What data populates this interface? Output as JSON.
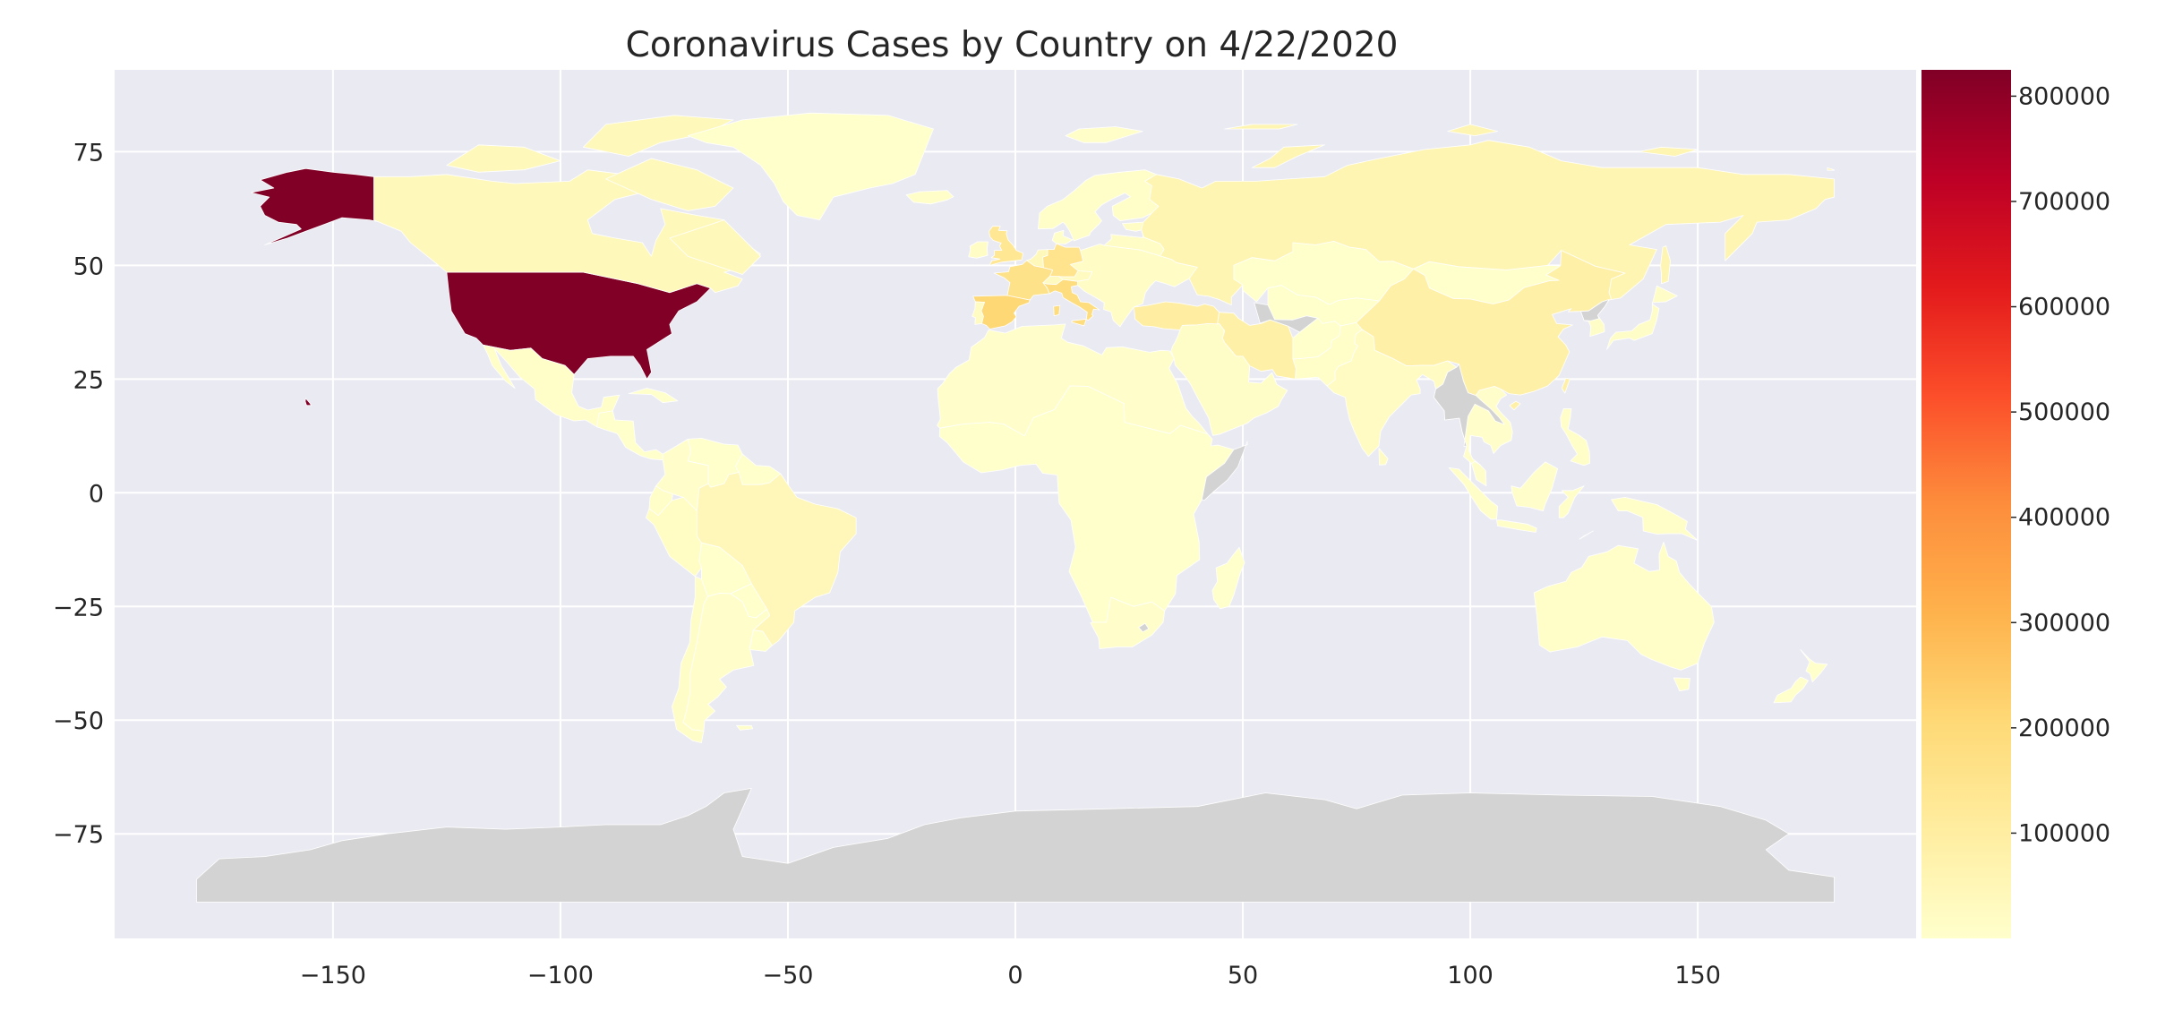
{
  "chart_data": {
    "type": "choropleth",
    "title": "Coronavirus Cases by Country on 4/22/2020",
    "xlabel": "",
    "ylabel": "",
    "xlim": [
      -198,
      198
    ],
    "ylim": [
      -98,
      93
    ],
    "xticks": [
      -150,
      -100,
      -50,
      0,
      50,
      100,
      150
    ],
    "xtick_labels": [
      "−150",
      "−100",
      "−50",
      "0",
      "50",
      "100",
      "150"
    ],
    "yticks": [
      75,
      50,
      25,
      0,
      -25,
      -50,
      -75
    ],
    "ytick_labels": [
      "75",
      "50",
      "25",
      "0",
      "−25",
      "−50",
      "−75"
    ],
    "grid": true,
    "colorbar": {
      "min": 0,
      "max": 825000,
      "ticks": [
        100000,
        200000,
        300000,
        400000,
        500000,
        600000,
        700000,
        800000
      ],
      "tick_labels": [
        "100000",
        "200000",
        "300000",
        "400000",
        "500000",
        "600000",
        "700000",
        "800000"
      ],
      "colormap": "YlOrRd",
      "stops": [
        "#ffffcc",
        "#ffeda0",
        "#fed976",
        "#feb24c",
        "#fd8d3c",
        "#fc4e2a",
        "#e31a1c",
        "#bd0026",
        "#800026"
      ]
    },
    "regions": [
      {
        "name": "United States",
        "value": 825000
      },
      {
        "name": "Alaska",
        "value": 825000
      },
      {
        "name": "Hawaii",
        "value": 825000
      },
      {
        "name": "Spain",
        "value": 208000
      },
      {
        "name": "Italy",
        "value": 187000
      },
      {
        "name": "France",
        "value": 158000
      },
      {
        "name": "Germany",
        "value": 150000
      },
      {
        "name": "United Kingdom",
        "value": 134000
      },
      {
        "name": "Turkey",
        "value": 98000
      },
      {
        "name": "Iran",
        "value": 85000
      },
      {
        "name": "China",
        "value": 84000
      },
      {
        "name": "Russia",
        "value": 58000
      },
      {
        "name": "Brazil",
        "value": 45000
      },
      {
        "name": "Canada",
        "value": 40000
      },
      {
        "name": "Belgium",
        "value": 41000
      },
      {
        "name": "Netherlands",
        "value": 34000
      },
      {
        "name": "Switzerland",
        "value": 28000
      },
      {
        "name": "Portugal",
        "value": 22000
      },
      {
        "name": "India",
        "value": 21000
      },
      {
        "name": "Peru",
        "value": 19000
      },
      {
        "name": "Ireland",
        "value": 16000
      },
      {
        "name": "Sweden",
        "value": 16000
      },
      {
        "name": "Saudi Arabia",
        "value": 12000
      },
      {
        "name": "Mexico",
        "value": 10000
      },
      {
        "name": "Pakistan",
        "value": 10000
      },
      {
        "name": "Chile",
        "value": 11000
      },
      {
        "name": "Japan",
        "value": 11000
      },
      {
        "name": "Poland",
        "value": 10000
      },
      {
        "name": "Ecuador",
        "value": 10000
      },
      {
        "name": "Greenland",
        "value": 11
      },
      {
        "name": "Kazakhstan",
        "value": 2000
      },
      {
        "name": "Mongolia",
        "value": 35
      },
      {
        "name": "Central Asia",
        "value": 2000
      },
      {
        "name": "Scandinavia",
        "value": 7000
      },
      {
        "name": "Eastern Europe",
        "value": 15000
      },
      {
        "name": "Middle East",
        "value": 12000
      },
      {
        "name": "Southeast Asia",
        "value": 3000
      },
      {
        "name": "Indonesia",
        "value": 7000
      },
      {
        "name": "Philippines",
        "value": 6000
      },
      {
        "name": "Australia",
        "value": 6600
      },
      {
        "name": "New Zealand",
        "value": 1400
      },
      {
        "name": "North Africa",
        "value": 3000
      },
      {
        "name": "Sub-Saharan Africa",
        "value": 1000
      },
      {
        "name": "South Africa",
        "value": 3600
      },
      {
        "name": "Madagascar",
        "value": 120
      },
      {
        "name": "Central America",
        "value": 2000
      },
      {
        "name": "Colombia",
        "value": 4000
      },
      {
        "name": "Venezuela",
        "value": 300
      },
      {
        "name": "Bolivia",
        "value": 600
      },
      {
        "name": "Argentina",
        "value": 3200
      },
      {
        "name": "Japan Korea",
        "value": 11000
      },
      {
        "name": "Turkmenistan",
        "value": null
      },
      {
        "name": "Myanmar Laos",
        "value": null
      },
      {
        "name": "North Korea",
        "value": null
      },
      {
        "name": "Lesotho",
        "value": null
      },
      {
        "name": "Somalia",
        "value": null
      },
      {
        "name": "Antarctica",
        "value": null
      }
    ]
  }
}
